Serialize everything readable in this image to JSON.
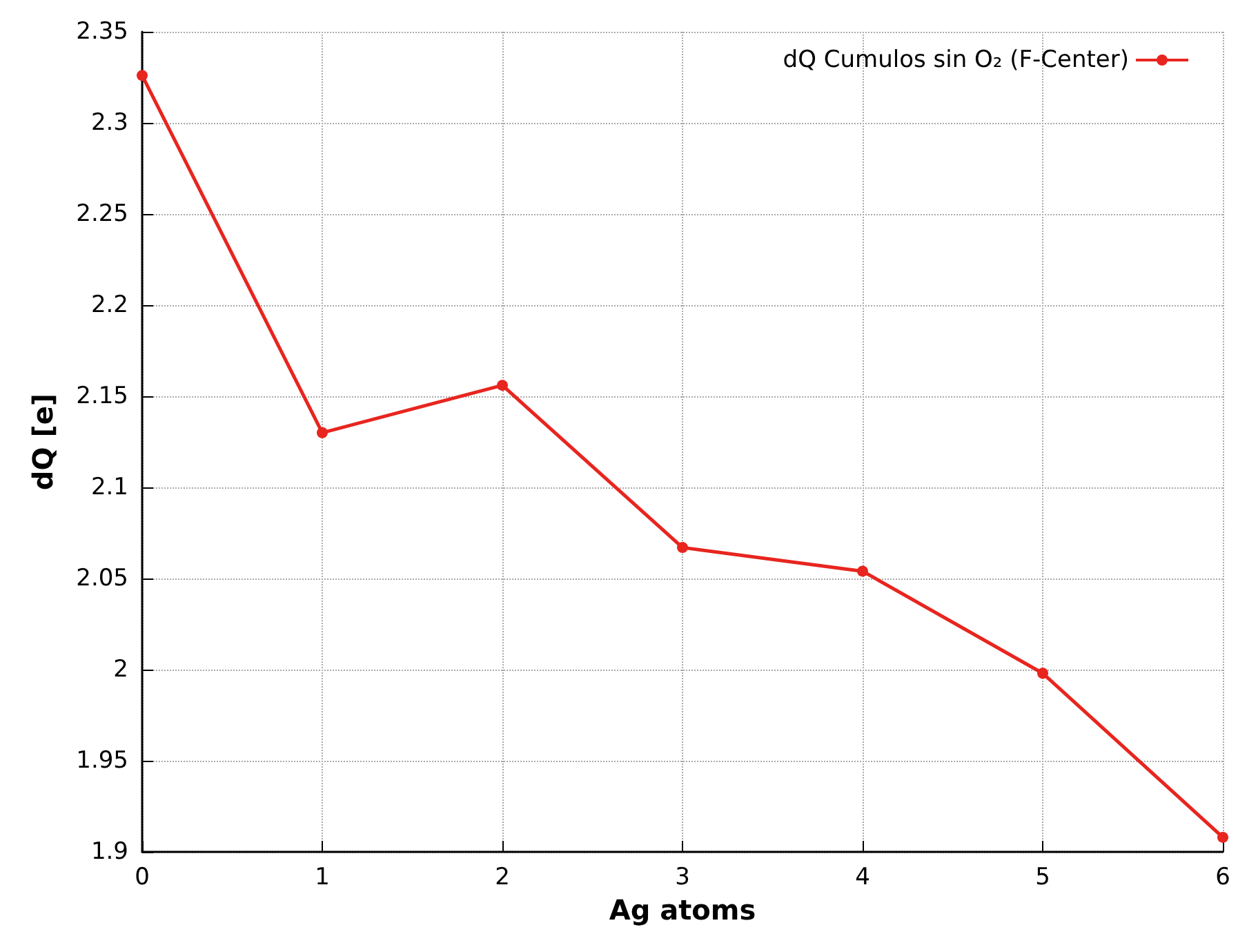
{
  "chart_data": {
    "type": "line",
    "xlabel": "Ag atoms",
    "ylabel": "dQ [e]",
    "x": [
      0,
      1,
      2,
      3,
      4,
      5,
      6
    ],
    "series": [
      {
        "name": "dQ Cumulos sin O₂ (F-Center)",
        "color": "#e8251f",
        "values": [
          2.326,
          2.13,
          2.156,
          2.067,
          2.054,
          1.998,
          1.908
        ]
      }
    ],
    "xlim": [
      0,
      6
    ],
    "xticks": [
      0,
      1,
      2,
      3,
      4,
      5,
      6
    ],
    "ylim": [
      1.9,
      2.35
    ],
    "yticks": [
      1.9,
      1.95,
      2,
      2.05,
      2.1,
      2.15,
      2.2,
      2.25,
      2.3,
      2.35
    ],
    "grid": true,
    "legend": "top right",
    "marker": "circle",
    "line_style": "solid"
  }
}
